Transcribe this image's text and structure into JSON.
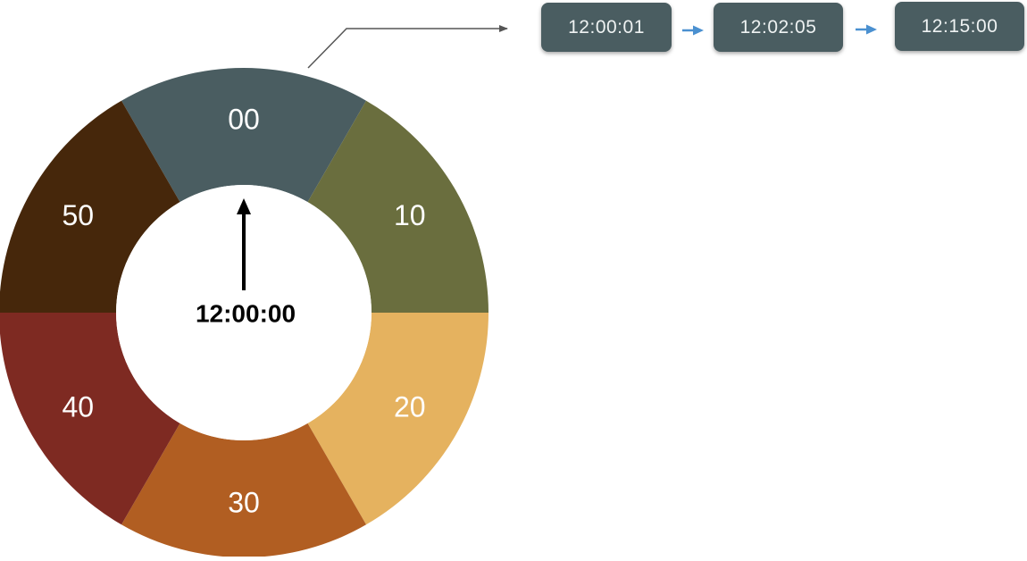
{
  "clock": {
    "center_time": "12:00:00",
    "segments": [
      {
        "label": "00",
        "color": "#4a5d61"
      },
      {
        "label": "10",
        "color": "#6a6e3e"
      },
      {
        "label": "20",
        "color": "#e5b25f"
      },
      {
        "label": "30",
        "color": "#b15e22"
      },
      {
        "label": "40",
        "color": "#7e2a22"
      },
      {
        "label": "50",
        "color": "#46270b"
      }
    ],
    "hand_color": "#000000"
  },
  "timeline": {
    "box_color": "#4a5d61",
    "arrow_color": "#4a90d0",
    "connector_color": "#555555",
    "events": [
      "12:00:01",
      "12:02:05",
      "12:15:00"
    ]
  }
}
